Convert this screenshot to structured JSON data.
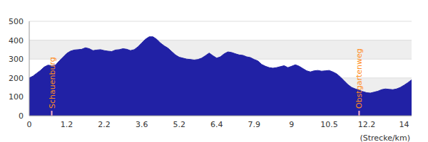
{
  "chart_data": {
    "type": "area",
    "xlabel": "(Strecke/km)",
    "categories": [
      "0",
      null,
      null,
      null,
      null,
      null,
      null,
      null,
      null,
      null,
      "1.2",
      null,
      null,
      null,
      null,
      null,
      null,
      null,
      null,
      null,
      "2.2",
      null,
      null,
      null,
      null,
      null,
      null,
      null,
      null,
      null,
      "3.6",
      null,
      null,
      null,
      null,
      null,
      null,
      null,
      null,
      null,
      "5.2",
      null,
      null,
      null,
      null,
      null,
      null,
      null,
      null,
      null,
      "6.4",
      null,
      null,
      null,
      null,
      null,
      null,
      null,
      null,
      null,
      "7.9",
      null,
      null,
      null,
      null,
      null,
      null,
      null,
      null,
      null,
      "9",
      null,
      null,
      null,
      null,
      null,
      null,
      null,
      null,
      null,
      "10.5",
      null,
      null,
      null,
      null,
      null,
      null,
      null,
      null,
      null,
      "12.2",
      null,
      null,
      null,
      null,
      null,
      null,
      null,
      null,
      null,
      "14",
      null,
      null
    ],
    "values": [
      200,
      210,
      225,
      240,
      258,
      268,
      265,
      268,
      290,
      310,
      330,
      342,
      348,
      350,
      352,
      360,
      355,
      345,
      348,
      350,
      345,
      342,
      340,
      348,
      350,
      355,
      352,
      345,
      350,
      365,
      385,
      405,
      418,
      418,
      405,
      385,
      370,
      358,
      340,
      322,
      310,
      305,
      300,
      298,
      295,
      298,
      305,
      318,
      332,
      318,
      305,
      312,
      328,
      338,
      335,
      328,
      322,
      320,
      312,
      308,
      298,
      290,
      272,
      262,
      255,
      252,
      255,
      260,
      265,
      255,
      262,
      270,
      262,
      250,
      238,
      232,
      238,
      240,
      236,
      238,
      240,
      232,
      222,
      205,
      185,
      165,
      150,
      142,
      135,
      128,
      122,
      120,
      125,
      130,
      138,
      142,
      140,
      138,
      142,
      150,
      162,
      175,
      190
    ],
    "color": "#2121a5",
    "ylim": [
      0,
      500
    ],
    "yticks": [
      0,
      100,
      200,
      300,
      400,
      500
    ],
    "grid": true,
    "annotations": [
      {
        "text": "Schauenburg",
        "index": 6
      },
      {
        "text": "Obstgartenweg",
        "index": 88
      }
    ]
  }
}
